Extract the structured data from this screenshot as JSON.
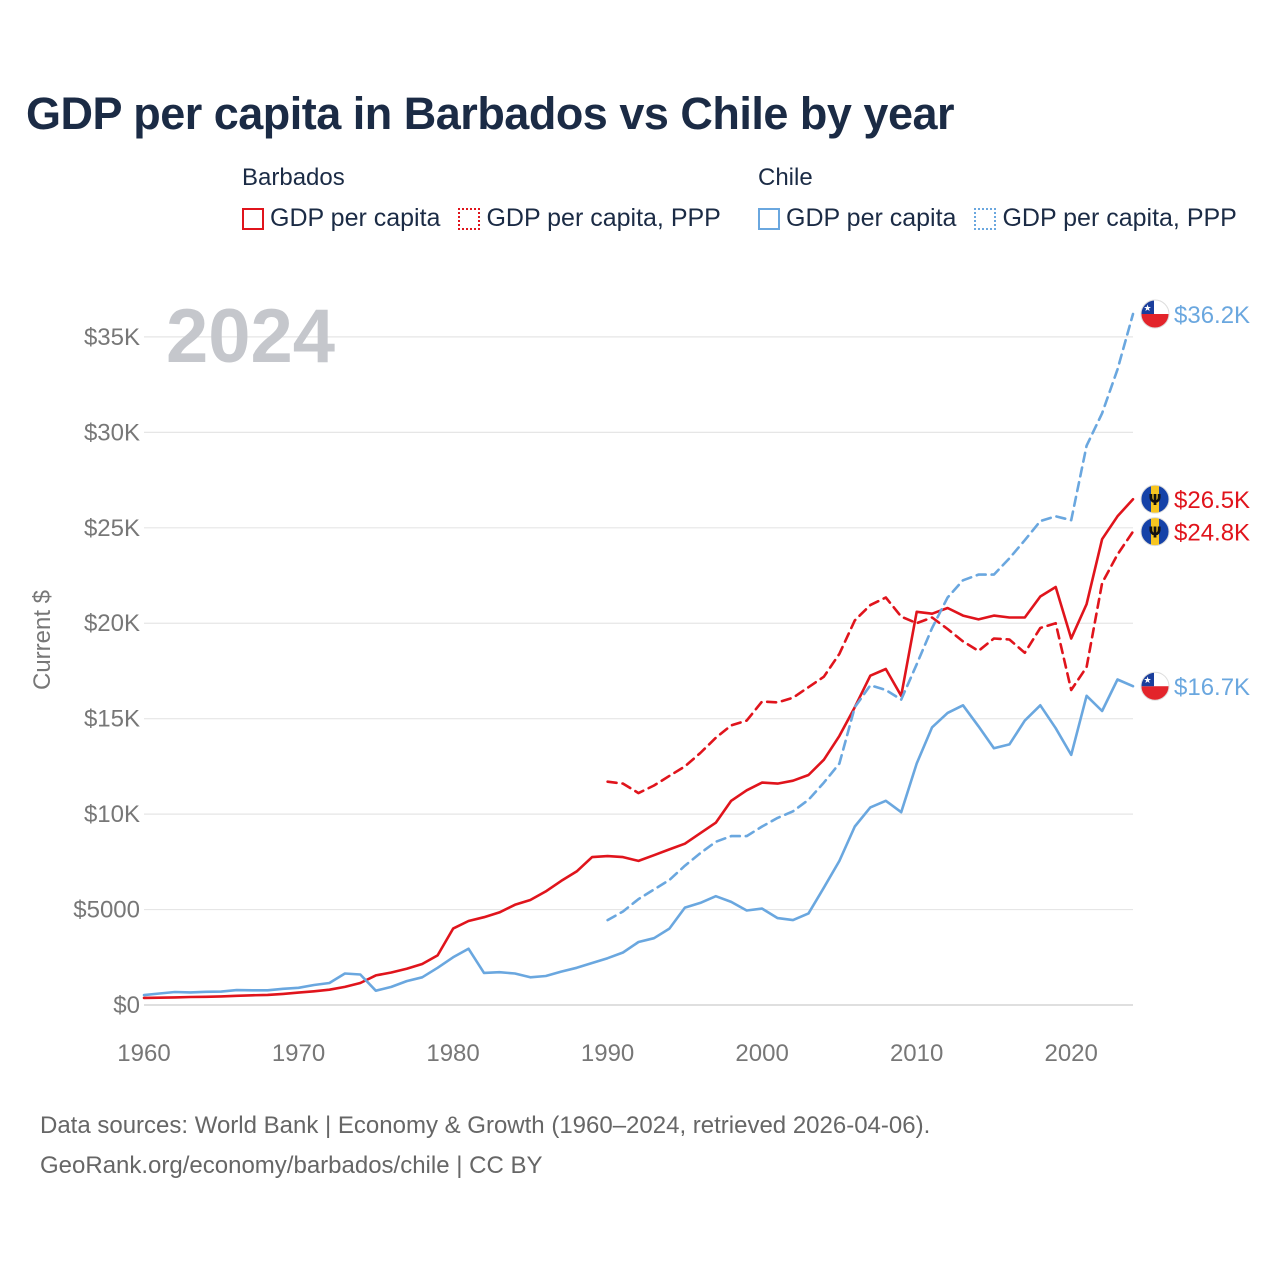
{
  "chart_data": {
    "type": "line",
    "title": "GDP per capita in Barbados vs Chile by year",
    "year_label": "2024",
    "ylabel": "Current $",
    "xlim": [
      1960,
      2024
    ],
    "ylim": [
      0,
      36200
    ],
    "x_ticks": [
      1960,
      1970,
      1980,
      1990,
      2000,
      2010,
      2020
    ],
    "y_ticks": [
      {
        "value": 0,
        "label": "$0"
      },
      {
        "value": 5000,
        "label": "$5000"
      },
      {
        "value": 10000,
        "label": "$10K"
      },
      {
        "value": 15000,
        "label": "$15K"
      },
      {
        "value": 20000,
        "label": "$20K"
      },
      {
        "value": 25000,
        "label": "$25K"
      },
      {
        "value": 30000,
        "label": "$30K"
      },
      {
        "value": 35000,
        "label": "$35K"
      }
    ],
    "legend": [
      {
        "group": "Barbados",
        "items": [
          {
            "label": "GDP per capita",
            "style": "solid",
            "color": "#e0141c"
          },
          {
            "label": "GDP per capita, PPP",
            "style": "dotted",
            "color": "#e0141c"
          }
        ]
      },
      {
        "group": "Chile",
        "items": [
          {
            "label": "GDP per capita",
            "style": "solid",
            "color": "#6aa7df"
          },
          {
            "label": "GDP per capita, PPP",
            "style": "dotted",
            "color": "#6aa7df"
          }
        ]
      }
    ],
    "series": [
      {
        "name": "Barbados GDP per capita",
        "country": "Barbados",
        "color": "#e0141c",
        "dash": false,
        "end_label": "$26.5K",
        "x": [
          1960,
          1961,
          1962,
          1963,
          1964,
          1965,
          1966,
          1967,
          1968,
          1969,
          1970,
          1971,
          1972,
          1973,
          1974,
          1975,
          1976,
          1977,
          1978,
          1979,
          1980,
          1981,
          1982,
          1983,
          1984,
          1985,
          1986,
          1987,
          1988,
          1989,
          1990,
          1991,
          1992,
          1993,
          1994,
          1995,
          1996,
          1997,
          1998,
          1999,
          2000,
          2001,
          2002,
          2003,
          2004,
          2005,
          2006,
          2007,
          2008,
          2009,
          2010,
          2011,
          2012,
          2013,
          2014,
          2015,
          2016,
          2017,
          2018,
          2019,
          2020,
          2021,
          2022,
          2023,
          2024
        ],
        "y": [
          370,
          380,
          400,
          420,
          430,
          450,
          480,
          510,
          530,
          580,
          650,
          720,
          800,
          950,
          1150,
          1550,
          1700,
          1900,
          2150,
          2600,
          4000,
          4400,
          4600,
          4850,
          5250,
          5500,
          5950,
          6500,
          7000,
          7750,
          7800,
          7750,
          7550,
          7850,
          8150,
          8450,
          9000,
          9550,
          10700,
          11250,
          11650,
          11600,
          11750,
          12050,
          12850,
          14100,
          15600,
          17250,
          17600,
          16200,
          20600,
          20500,
          20800,
          20400,
          20200,
          20400,
          20300,
          20300,
          21400,
          21900,
          19200,
          21000,
          24400,
          25600,
          26500
        ]
      },
      {
        "name": "Barbados GDP per capita, PPP",
        "country": "Barbados",
        "color": "#e0141c",
        "dash": true,
        "end_label": "$24.8K",
        "x": [
          1990,
          1991,
          1992,
          1993,
          1994,
          1995,
          1996,
          1997,
          1998,
          1999,
          2000,
          2001,
          2002,
          2003,
          2004,
          2005,
          2006,
          2007,
          2008,
          2009,
          2010,
          2011,
          2012,
          2013,
          2014,
          2015,
          2016,
          2017,
          2018,
          2019,
          2020,
          2021,
          2022,
          2023,
          2024
        ],
        "y": [
          11700,
          11600,
          11100,
          11500,
          12000,
          12500,
          13200,
          14000,
          14650,
          14900,
          15900,
          15850,
          16100,
          16650,
          17200,
          18400,
          20150,
          20950,
          21350,
          20350,
          20000,
          20300,
          19700,
          19050,
          18550,
          19200,
          19150,
          18450,
          19750,
          20000,
          16500,
          17700,
          22100,
          23600,
          24800
        ]
      },
      {
        "name": "Chile GDP per capita",
        "country": "Chile",
        "color": "#6aa7df",
        "dash": false,
        "end_label": "$16.7K",
        "x": [
          1960,
          1961,
          1962,
          1963,
          1964,
          1965,
          1966,
          1967,
          1968,
          1969,
          1970,
          1971,
          1972,
          1973,
          1974,
          1975,
          1976,
          1977,
          1978,
          1979,
          1980,
          1981,
          1982,
          1983,
          1984,
          1985,
          1986,
          1987,
          1988,
          1989,
          1990,
          1991,
          1992,
          1993,
          1994,
          1995,
          1996,
          1997,
          1998,
          1999,
          2000,
          2001,
          2002,
          2003,
          2004,
          2005,
          2006,
          2007,
          2008,
          2009,
          2010,
          2011,
          2012,
          2013,
          2014,
          2015,
          2016,
          2017,
          2018,
          2019,
          2020,
          2021,
          2022,
          2023,
          2024
        ],
        "y": [
          520,
          600,
          680,
          660,
          690,
          700,
          780,
          770,
          770,
          850,
          900,
          1050,
          1150,
          1650,
          1600,
          750,
          950,
          1250,
          1450,
          1950,
          2500,
          2950,
          1680,
          1720,
          1650,
          1450,
          1520,
          1750,
          1950,
          2200,
          2450,
          2750,
          3300,
          3500,
          4000,
          5100,
          5350,
          5700,
          5400,
          4950,
          5050,
          4550,
          4450,
          4800,
          6150,
          7550,
          9350,
          10350,
          10700,
          10100,
          12650,
          14550,
          15300,
          15700,
          14600,
          13450,
          13650,
          14900,
          15700,
          14500,
          13100,
          16200,
          15400,
          17050,
          16700
        ]
      },
      {
        "name": "Chile GDP per capita, PPP",
        "country": "Chile",
        "color": "#6aa7df",
        "dash": true,
        "end_label": "$36.2K",
        "x": [
          1990,
          1991,
          1992,
          1993,
          1994,
          1995,
          1996,
          1997,
          1998,
          1999,
          2000,
          2001,
          2002,
          2003,
          2004,
          2005,
          2006,
          2007,
          2008,
          2009,
          2010,
          2011,
          2012,
          2013,
          2014,
          2015,
          2016,
          2017,
          2018,
          2019,
          2020,
          2021,
          2022,
          2023,
          2024
        ],
        "y": [
          4450,
          4900,
          5550,
          6050,
          6550,
          7300,
          7950,
          8550,
          8850,
          8850,
          9350,
          9800,
          10150,
          10750,
          11650,
          12650,
          15600,
          16750,
          16500,
          16000,
          17850,
          19750,
          21350,
          22250,
          22550,
          22550,
          23400,
          24350,
          25350,
          25600,
          25400,
          29300,
          31000,
          33300,
          36200
        ]
      }
    ]
  },
  "footer": {
    "line1": "Data sources: World Bank | Economy & Growth (1960–2024, retrieved 2026-04-06).",
    "line2": "GeoRank.org/economy/barbados/chile | CC BY"
  }
}
